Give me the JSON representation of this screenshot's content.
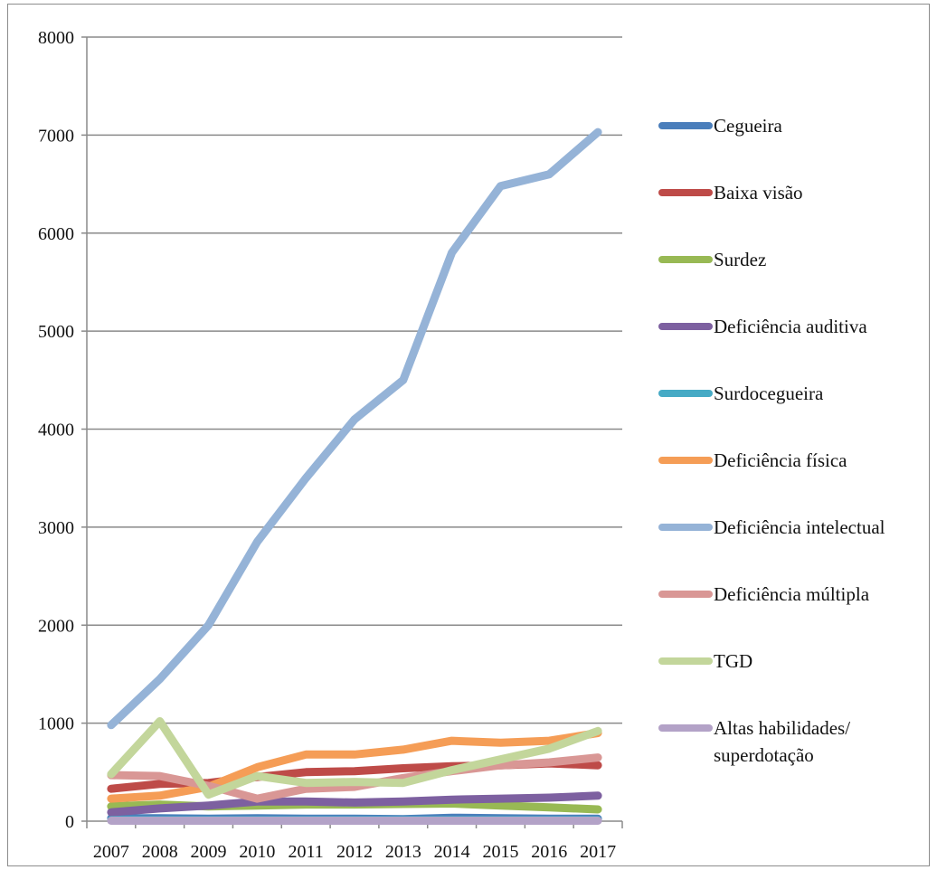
{
  "chart_data": {
    "type": "line",
    "title": "",
    "xlabel": "",
    "ylabel": "",
    "ylim": [
      0,
      8000
    ],
    "yticks": [
      0,
      1000,
      2000,
      3000,
      4000,
      5000,
      6000,
      7000,
      8000
    ],
    "grid": true,
    "legend_position": "right",
    "categories": [
      "2007",
      "2008",
      "2009",
      "2010",
      "2011",
      "2012",
      "2013",
      "2014",
      "2015",
      "2016",
      "2017"
    ],
    "series": [
      {
        "name": "Cegueira",
        "color": "#4a7ebb",
        "values": [
          30,
          30,
          25,
          30,
          25,
          25,
          20,
          35,
          30,
          25,
          25
        ]
      },
      {
        "name": "Baixa visão",
        "color": "#be4b48",
        "values": [
          330,
          380,
          390,
          450,
          500,
          510,
          540,
          560,
          570,
          590,
          570
        ]
      },
      {
        "name": "Surdez",
        "color": "#98b954",
        "values": [
          150,
          170,
          150,
          160,
          170,
          170,
          175,
          180,
          160,
          140,
          120
        ]
      },
      {
        "name": "Deficiência auditiva",
        "color": "#7d60a0",
        "values": [
          90,
          130,
          160,
          200,
          200,
          190,
          200,
          220,
          230,
          240,
          260
        ]
      },
      {
        "name": "Surdocegueira",
        "color": "#46aac5",
        "values": [
          10,
          10,
          10,
          10,
          10,
          10,
          10,
          10,
          10,
          10,
          10
        ]
      },
      {
        "name": "Deficiência física",
        "color": "#f59d56",
        "values": [
          230,
          260,
          350,
          550,
          680,
          680,
          730,
          820,
          800,
          820,
          900
        ]
      },
      {
        "name": "Deficiência intelectual",
        "color": "#95b3d7",
        "values": [
          980,
          1450,
          2000,
          2850,
          3500,
          4100,
          4500,
          5800,
          6480,
          6600,
          7030
        ]
      },
      {
        "name": "Deficiência múltipla",
        "color": "#d99795",
        "values": [
          470,
          460,
          360,
          230,
          330,
          350,
          440,
          510,
          570,
          600,
          650
        ]
      },
      {
        "name": "TGD",
        "color": "#c3d69b",
        "values": [
          480,
          1020,
          270,
          460,
          390,
          400,
          390,
          520,
          630,
          740,
          920
        ]
      },
      {
        "name": "Altas habilidades/ superdotação",
        "color": "#b3a2c7",
        "values": [
          5,
          5,
          5,
          5,
          5,
          5,
          5,
          5,
          5,
          5,
          5
        ]
      }
    ]
  },
  "legend": [
    {
      "lines": [
        "Cegueira"
      ]
    },
    {
      "lines": [
        "Baixa visão"
      ]
    },
    {
      "lines": [
        "Surdez"
      ]
    },
    {
      "lines": [
        "Deficiência auditiva"
      ]
    },
    {
      "lines": [
        "Surdocegueira"
      ]
    },
    {
      "lines": [
        "Deficiência física"
      ]
    },
    {
      "lines": [
        "Deficiência intelectual"
      ]
    },
    {
      "lines": [
        "Deficiência múltipla"
      ]
    },
    {
      "lines": [
        "TGD"
      ]
    },
    {
      "lines": [
        "Altas habilidades/",
        "superdotação"
      ]
    }
  ]
}
